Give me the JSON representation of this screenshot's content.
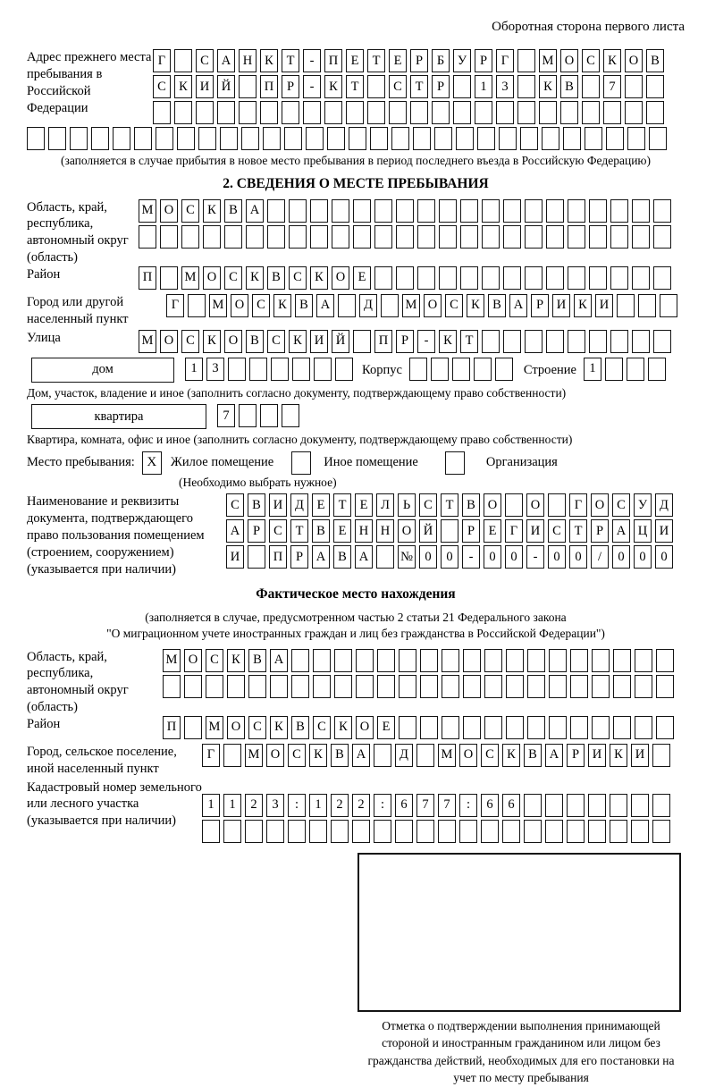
{
  "page": {
    "header_note": "Оборотная сторона первого листа"
  },
  "prev_address": {
    "label": "Адрес прежнего места пребывания в Российской Федерации",
    "rows": [
      "Г САНКТ-ПЕТЕРБУРГ МОСКОВ",
      "СКИЙ ПР-КТ СТР 13 КВ 7  ",
      "                        "
    ],
    "full_row": "                              ",
    "caption": "(заполняется в случае прибытия в новое место пребывания в период последнего въезда в Российскую Федерацию)"
  },
  "section2": {
    "title": "2. СВЕДЕНИЯ О МЕСТЕ ПРЕБЫВАНИЯ",
    "region": {
      "label": "Область, край, республика, автономный округ (область)",
      "rows": [
        "МОСКВА                   ",
        "                         "
      ]
    },
    "district": {
      "label": "Район",
      "row": "П МОСКВСКОЕ              "
    },
    "city": {
      "label": "Город или другой населенный пункт",
      "row": "Г МОСКВА Д МОСКВАРИКИ   "
    },
    "street": {
      "label": "Улица",
      "row": "МОСКОВСКИЙ ПР-КТ         "
    },
    "house": {
      "box_label": "дом",
      "cells": "13      ",
      "korpus_label": "Корпус",
      "korpus_cells": "     ",
      "stroenie_label": "Строение",
      "stroenie_cells": "1   ",
      "caption": "Дом, участок, владение и иное (заполнить согласно документу, подтверждающему право собственности)"
    },
    "apartment": {
      "box_label": "квартира",
      "cells": "7   ",
      "caption": "Квартира, комната, офис и иное (заполнить согласно документу, подтверждающему право собственности)"
    },
    "stay_type": {
      "label": "Место пребывания:",
      "options": [
        {
          "label": "Жилое помещение",
          "mark": "X"
        },
        {
          "label": "Иное помещение",
          "mark": ""
        },
        {
          "label": "Организация",
          "mark": ""
        }
      ],
      "caption": "(Необходимо выбрать нужное)"
    },
    "document": {
      "label": "Наименование и реквизиты документа, подтверждающего право пользования помещением (строением, сооружением) (указывается при наличии)",
      "rows": [
        "СВИДЕТЕЛЬСТВО О ГОСУД",
        "АРСТВЕННОЙ РЕГИСТРАЦИ",
        "И ПРАВА №00-00-00/000"
      ]
    }
  },
  "actual_location": {
    "title": "Фактическое место нахождения",
    "caption_line1": "(заполняется в случае, предусмотренном частью 2 статьи 21 Федерального закона",
    "caption_line2": "\"О миграционном учете иностранных граждан и лиц без гражданства в Российской Федерации\")",
    "region": {
      "label": "Область, край, республика, автономный округ (область)",
      "rows": [
        "МОСКВА                  ",
        "                        "
      ]
    },
    "district": {
      "label": "Район",
      "row": "П МОСКВСКОЕ             "
    },
    "city": {
      "label": "Город, сельское поселение, иной населенный пункт",
      "row": "Г МОСКВА Д МОСКВАРИКИ "
    },
    "cadastral": {
      "label": "Кадастровый номер земельного или лесного участка (указывается при наличии)",
      "rows": [
        "1123:122:677:66       ",
        "                      "
      ]
    }
  },
  "stamp": {
    "caption": "Отметка о подтверждении выполнения принимающей стороной и иностранным гражданином или лицом без гражданства действий, необходимых для его постановки на учет по месту пребывания"
  }
}
